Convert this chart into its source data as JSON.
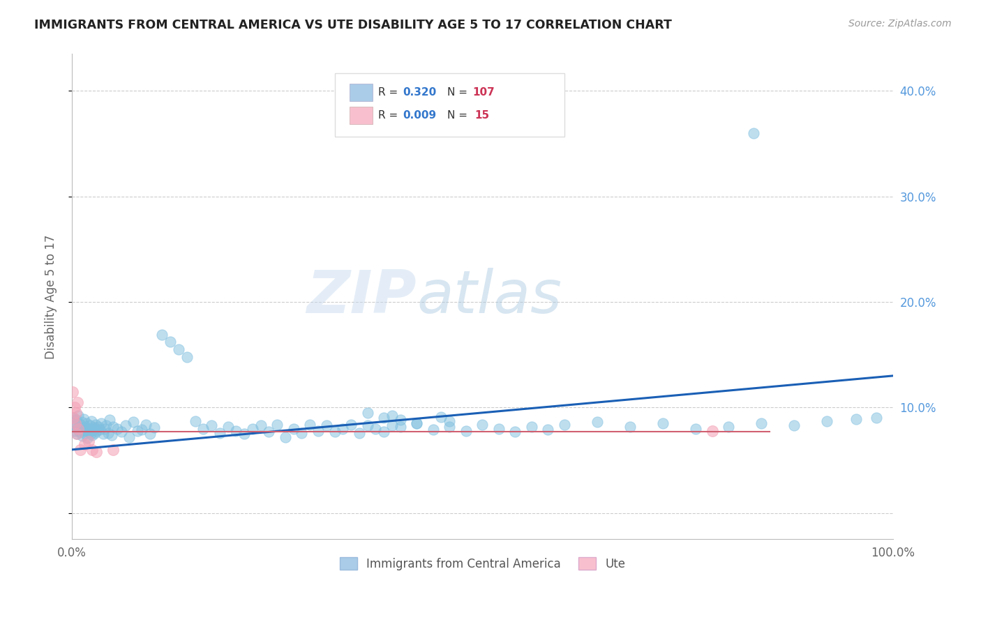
{
  "title": "IMMIGRANTS FROM CENTRAL AMERICA VS UTE DISABILITY AGE 5 TO 17 CORRELATION CHART",
  "source": "Source: ZipAtlas.com",
  "ylabel": "Disability Age 5 to 17",
  "watermark": "ZIPatlas",
  "xlim": [
    0.0,
    1.0
  ],
  "ylim": [
    -0.025,
    0.435
  ],
  "yticks": [
    0.0,
    0.1,
    0.2,
    0.3,
    0.4
  ],
  "ytick_labels_right": [
    "",
    "10.0%",
    "20.0%",
    "30.0%",
    "40.0%"
  ],
  "xticks": [
    0.0,
    0.25,
    0.5,
    0.75,
    1.0
  ],
  "xtick_labels": [
    "0.0%",
    "",
    "",
    "",
    "100.0%"
  ],
  "blue_color": "#7fbfdf",
  "pink_color": "#f4a0b5",
  "trend_blue": "#1a5fb5",
  "trend_pink": "#d06070",
  "background": "#ffffff",
  "grid_color": "#cccccc",
  "title_color": "#222222",
  "legend_text_color": "#333333",
  "legend_R_color": "#3377cc",
  "legend_N_color": "#cc3355",
  "blue_fill": "#aacce8",
  "pink_fill": "#f8c0ce",
  "blue_scatter_x": [
    0.001,
    0.002,
    0.003,
    0.004,
    0.005,
    0.006,
    0.007,
    0.008,
    0.009,
    0.01,
    0.011,
    0.012,
    0.013,
    0.014,
    0.015,
    0.016,
    0.017,
    0.018,
    0.019,
    0.02,
    0.021,
    0.022,
    0.023,
    0.024,
    0.025,
    0.026,
    0.027,
    0.028,
    0.029,
    0.03,
    0.032,
    0.034,
    0.036,
    0.038,
    0.04,
    0.042,
    0.044,
    0.046,
    0.048,
    0.05,
    0.055,
    0.06,
    0.065,
    0.07,
    0.075,
    0.08,
    0.085,
    0.09,
    0.095,
    0.1,
    0.11,
    0.12,
    0.13,
    0.14,
    0.15,
    0.16,
    0.17,
    0.18,
    0.19,
    0.2,
    0.21,
    0.22,
    0.23,
    0.24,
    0.25,
    0.26,
    0.27,
    0.28,
    0.29,
    0.3,
    0.31,
    0.32,
    0.33,
    0.34,
    0.35,
    0.36,
    0.37,
    0.38,
    0.39,
    0.4,
    0.42,
    0.44,
    0.46,
    0.48,
    0.5,
    0.52,
    0.54,
    0.56,
    0.58,
    0.6,
    0.64,
    0.68,
    0.72,
    0.76,
    0.8,
    0.84,
    0.88,
    0.92,
    0.955,
    0.98,
    0.36,
    0.38,
    0.39,
    0.4,
    0.42,
    0.45,
    0.46,
    0.83
  ],
  "blue_scatter_y": [
    0.085,
    0.09,
    0.078,
    0.083,
    0.088,
    0.075,
    0.08,
    0.092,
    0.077,
    0.084,
    0.079,
    0.086,
    0.073,
    0.089,
    0.076,
    0.082,
    0.078,
    0.085,
    0.071,
    0.08,
    0.077,
    0.083,
    0.075,
    0.087,
    0.074,
    0.079,
    0.081,
    0.076,
    0.084,
    0.078,
    0.082,
    0.079,
    0.085,
    0.075,
    0.08,
    0.083,
    0.076,
    0.088,
    0.074,
    0.082,
    0.08,
    0.077,
    0.083,
    0.072,
    0.086,
    0.078,
    0.079,
    0.084,
    0.075,
    0.081,
    0.169,
    0.162,
    0.155,
    0.148,
    0.087,
    0.08,
    0.083,
    0.076,
    0.082,
    0.078,
    0.075,
    0.08,
    0.083,
    0.077,
    0.084,
    0.072,
    0.08,
    0.076,
    0.084,
    0.078,
    0.083,
    0.077,
    0.08,
    0.084,
    0.076,
    0.083,
    0.08,
    0.077,
    0.083,
    0.082,
    0.085,
    0.079,
    0.082,
    0.078,
    0.084,
    0.08,
    0.077,
    0.082,
    0.079,
    0.084,
    0.086,
    0.082,
    0.085,
    0.08,
    0.082,
    0.085,
    0.083,
    0.087,
    0.089,
    0.09,
    0.095,
    0.09,
    0.092,
    0.088,
    0.085,
    0.091,
    0.087,
    0.36
  ],
  "pink_scatter_x": [
    0.001,
    0.002,
    0.003,
    0.004,
    0.005,
    0.006,
    0.007,
    0.008,
    0.01,
    0.015,
    0.02,
    0.025,
    0.03,
    0.05,
    0.78
  ],
  "pink_scatter_y": [
    0.115,
    0.09,
    0.1,
    0.085,
    0.095,
    0.075,
    0.105,
    0.08,
    0.06,
    0.065,
    0.068,
    0.06,
    0.058,
    0.06,
    0.078
  ],
  "blue_trend_x0": 0.0,
  "blue_trend_x1": 1.0,
  "blue_trend_y0": 0.06,
  "blue_trend_y1": 0.13,
  "pink_trend_y": 0.077
}
